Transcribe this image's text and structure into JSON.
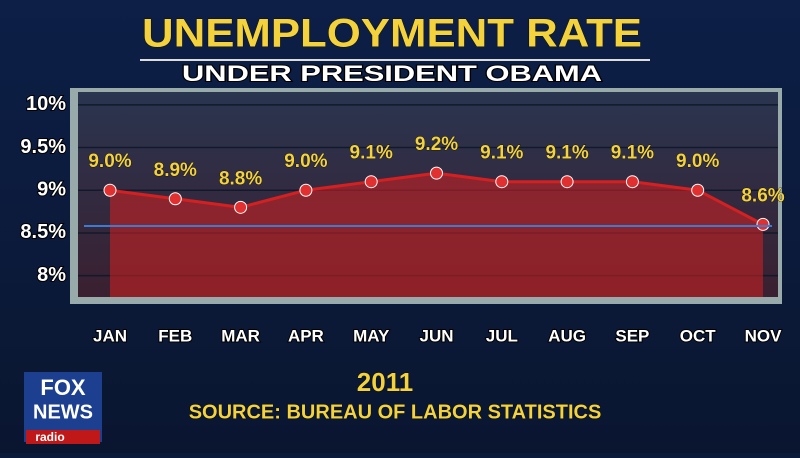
{
  "chart_data": {
    "type": "line",
    "title": "UNEMPLOYMENT RATE",
    "subtitle": "UNDER PRESIDENT OBAMA",
    "x_label": "2011",
    "source": "SOURCE: BUREAU OF LABOR STATISTICS",
    "categories": [
      "JAN",
      "FEB",
      "MAR",
      "APR",
      "MAY",
      "JUN",
      "JUL",
      "AUG",
      "SEP",
      "OCT",
      "NOV"
    ],
    "values": [
      9.0,
      8.9,
      8.8,
      9.0,
      9.1,
      9.2,
      9.1,
      9.1,
      9.1,
      9.0,
      8.6
    ],
    "value_labels": [
      "9.0%",
      "8.9%",
      "8.8%",
      "9.0%",
      "9.1%",
      "9.2%",
      "9.1%",
      "9.1%",
      "9.1%",
      "9.0%",
      "8.6%"
    ],
    "color": "#d42020",
    "ylim": [
      7.75,
      10.15
    ],
    "yticks": [
      {
        "value": 8,
        "label": "8%"
      },
      {
        "value": 8.5,
        "label": "8.5%"
      },
      {
        "value": 9,
        "label": "9%"
      },
      {
        "value": 9.5,
        "label": "9.5%"
      },
      {
        "value": 10,
        "label": "10%"
      }
    ],
    "grid": true
  },
  "logo": {
    "line1": "FOX",
    "line2": "NEWS",
    "line3": "radio"
  }
}
